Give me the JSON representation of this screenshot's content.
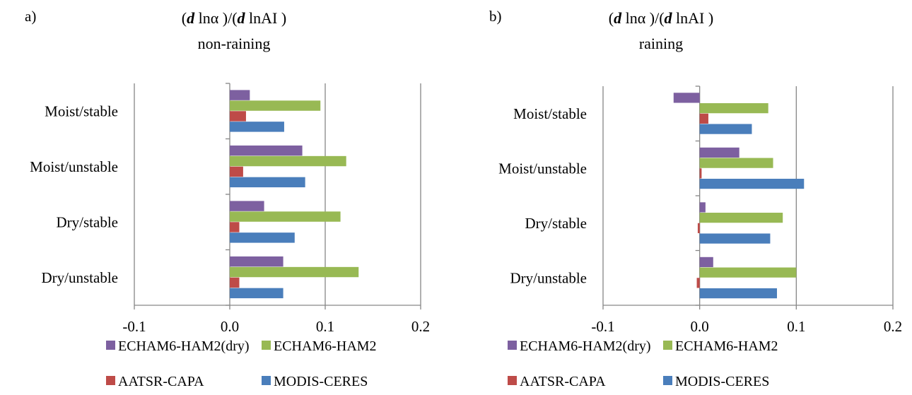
{
  "chart_data": [
    {
      "type": "bar",
      "orientation": "horizontal",
      "panel_label": "a)",
      "title_line1": "(d lnα )/(d lnAI )",
      "title_line2": "non-raining",
      "categories": [
        "Dry/unstable",
        "Dry/stable",
        "Moist/unstable",
        "Moist/stable"
      ],
      "xlim": [
        -0.1,
        0.2
      ],
      "xticks": [
        "-0.1",
        "0.0",
        "0.1",
        "0.2"
      ],
      "grid": true,
      "legend_placement": "bottom",
      "series": [
        {
          "name": "MODIS-CERES",
          "color": "#4a7ebb",
          "values": [
            0.056,
            0.068,
            0.079,
            0.057
          ]
        },
        {
          "name": "AATSR-CAPA",
          "color": "#be4b48",
          "values": [
            0.01,
            0.01,
            0.014,
            0.017
          ]
        },
        {
          "name": "ECHAM6-HAM2",
          "color": "#98b954",
          "values": [
            0.135,
            0.116,
            0.122,
            0.095
          ]
        },
        {
          "name": "ECHAM6-HAM2(dry)",
          "color": "#7d60a0",
          "values": [
            0.056,
            0.036,
            0.076,
            0.021
          ]
        }
      ]
    },
    {
      "type": "bar",
      "orientation": "horizontal",
      "panel_label": "b)",
      "title_line1": "(d lnα )/(d lnAI )",
      "title_line2": "raining",
      "categories": [
        "Dry/unstable",
        "Dry/stable",
        "Moist/unstable",
        "Moist/stable"
      ],
      "xlim": [
        -0.1,
        0.2
      ],
      "xticks": [
        "-0.1",
        "0.0",
        "0.1",
        "0.2"
      ],
      "grid": true,
      "legend_placement": "bottom",
      "series": [
        {
          "name": "MODIS-CERES",
          "color": "#4a7ebb",
          "values": [
            0.08,
            0.073,
            0.108,
            0.054
          ]
        },
        {
          "name": "AATSR-CAPA",
          "color": "#be4b48",
          "values": [
            -0.003,
            -0.002,
            0.002,
            0.009
          ]
        },
        {
          "name": "ECHAM6-HAM2",
          "color": "#98b954",
          "values": [
            0.1,
            0.086,
            0.076,
            0.071
          ]
        },
        {
          "name": "ECHAM6-HAM2(dry)",
          "color": "#7d60a0",
          "values": [
            0.014,
            0.006,
            0.041,
            -0.027
          ]
        }
      ]
    }
  ],
  "legend_order": [
    "ECHAM6-HAM2(dry)",
    "ECHAM6-HAM2",
    "AATSR-CAPA",
    "MODIS-CERES"
  ]
}
